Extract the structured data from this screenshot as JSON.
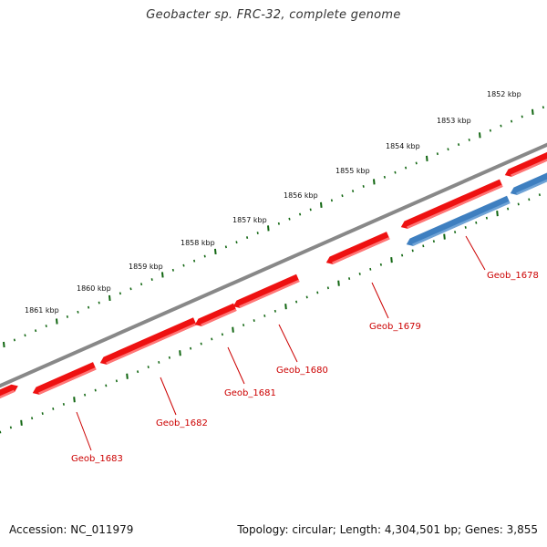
{
  "title": "Geobacter sp. FRC-32, complete genome",
  "accession": "Accession: NC_011979",
  "info": "Topology: circular; Length: 4,304,501 bp; Genes: 3,855",
  "colors": {
    "forward_gene": "#ee1111",
    "reverse_gene": "#3e7fc0",
    "backbone": "#888888",
    "ruler": "#116611",
    "label": "#cc0000"
  },
  "kbp_labels": [
    "1852 kbp",
    "1853 kbp",
    "1854 kbp",
    "1855 kbp",
    "1856 kbp",
    "1857 kbp",
    "1858 kbp",
    "1859 kbp",
    "1860 kbp",
    "1861 kbp"
  ],
  "genes": [
    {
      "name": "Geob_1678",
      "strand": "reverse"
    },
    {
      "name": "Geob_1679",
      "strand": "forward"
    },
    {
      "name": "Geob_1680",
      "strand": "forward"
    },
    {
      "name": "Geob_1681",
      "strand": "forward"
    },
    {
      "name": "Geob_1682",
      "strand": "forward"
    },
    {
      "name": "Geob_1683",
      "strand": "forward"
    }
  ]
}
